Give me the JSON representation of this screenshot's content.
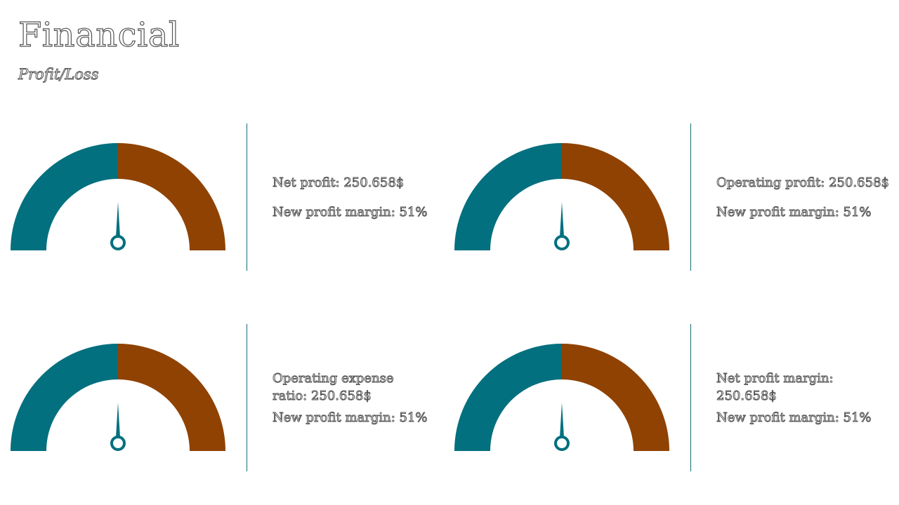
{
  "header": {
    "title": "Financial",
    "subtitle": "Profit/Loss"
  },
  "colors": {
    "teal": "#02707e",
    "brown": "#8f4202",
    "needle": "#02707e"
  },
  "cards": [
    {
      "metric": "Net profit: 250.658$",
      "margin": "New profit margin: 51%"
    },
    {
      "metric": "Operating profit: 250.658$",
      "margin": "New profit margin: 51%"
    },
    {
      "metric": "Operating expense ratio: 250.658$",
      "margin": "New profit margin: 51%"
    },
    {
      "metric": "Net profit margin: 250.658$",
      "margin": "New profit margin: 51%"
    }
  ],
  "chart_data": [
    {
      "type": "gauge",
      "segments": [
        {
          "color": "#02707e",
          "share": 0.5
        },
        {
          "color": "#8f4202",
          "share": 0.5
        }
      ],
      "needle_value": 0.5
    },
    {
      "type": "gauge",
      "segments": [
        {
          "color": "#02707e",
          "share": 0.5
        },
        {
          "color": "#8f4202",
          "share": 0.5
        }
      ],
      "needle_value": 0.5
    },
    {
      "type": "gauge",
      "segments": [
        {
          "color": "#02707e",
          "share": 0.5
        },
        {
          "color": "#8f4202",
          "share": 0.5
        }
      ],
      "needle_value": 0.5
    },
    {
      "type": "gauge",
      "segments": [
        {
          "color": "#02707e",
          "share": 0.5
        },
        {
          "color": "#8f4202",
          "share": 0.5
        }
      ],
      "needle_value": 0.5
    }
  ]
}
